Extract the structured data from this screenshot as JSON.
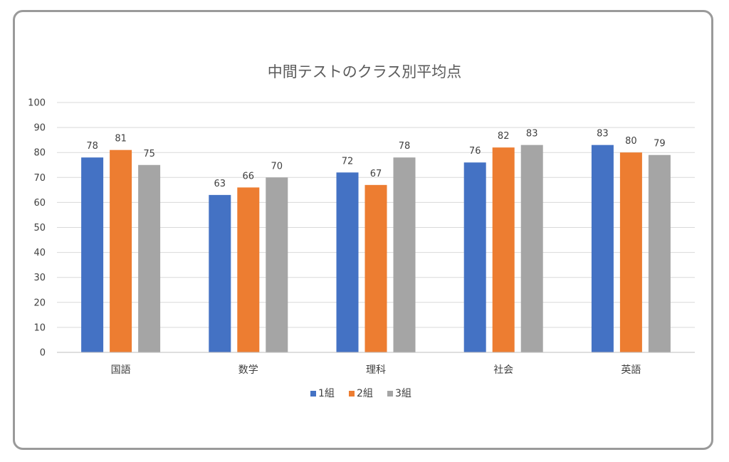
{
  "chart_data": {
    "type": "bar",
    "title": "中間テストのクラス別平均点",
    "categories": [
      "国語",
      "数学",
      "理科",
      "社会",
      "英語"
    ],
    "series": [
      {
        "name": "1組",
        "values": [
          78,
          63,
          72,
          76,
          83
        ],
        "color": "#4472C4"
      },
      {
        "name": "2組",
        "values": [
          81,
          66,
          67,
          82,
          80
        ],
        "color": "#ED7D31"
      },
      {
        "name": "3組",
        "values": [
          75,
          70,
          78,
          83,
          79
        ],
        "color": "#A5A5A5"
      }
    ],
    "ylim": [
      0,
      100
    ],
    "yticks": [
      0,
      10,
      20,
      30,
      40,
      50,
      60,
      70,
      80,
      90,
      100
    ],
    "grid": true,
    "legend": "bottom",
    "data_labels": true
  }
}
